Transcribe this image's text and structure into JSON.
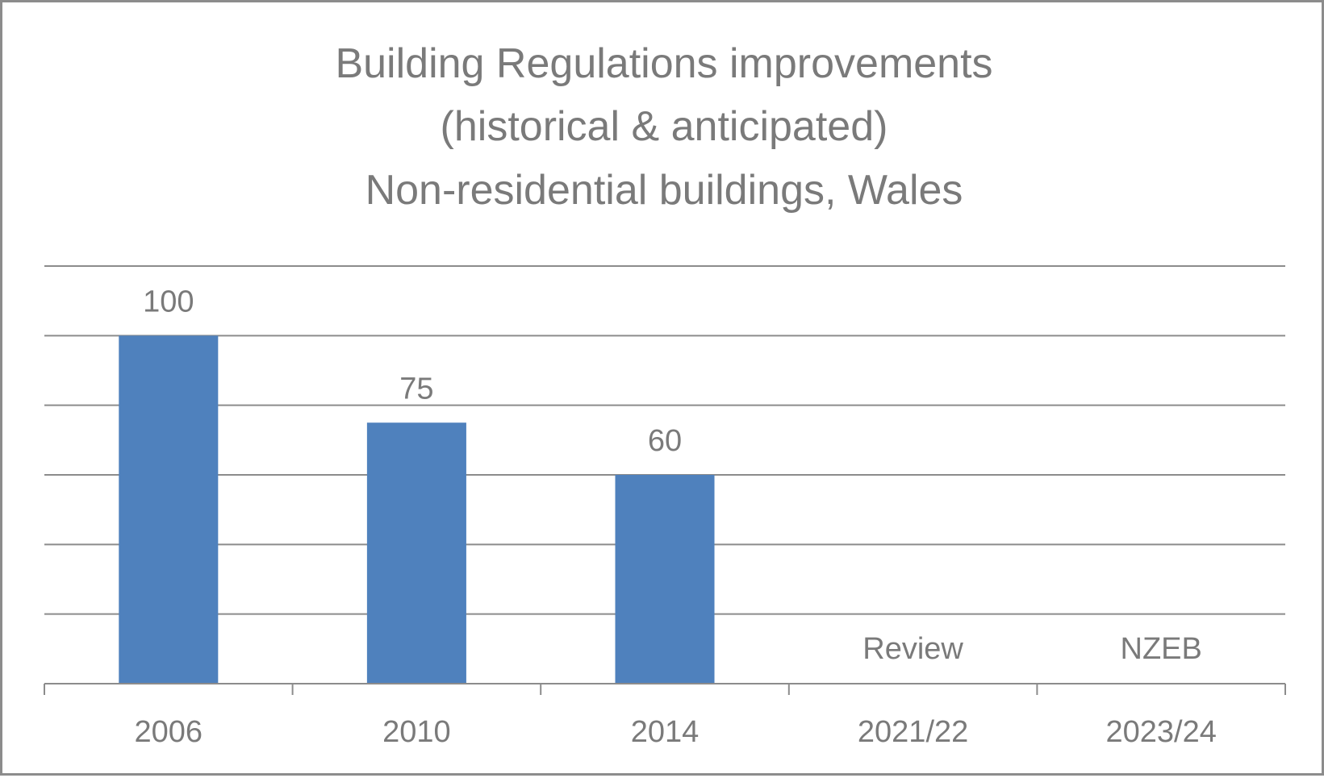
{
  "chart_data": {
    "type": "bar",
    "title": [
      "Building Regulations improvements",
      "(historical & anticipated)",
      "Non-residential buildings, Wales"
    ],
    "categories": [
      "2006",
      "2010",
      "2014",
      "2021/22",
      "2023/24"
    ],
    "values": [
      100,
      75,
      60,
      null,
      null
    ],
    "data_labels": [
      "100",
      "75",
      "60",
      "Review",
      "NZEB"
    ],
    "ylim": [
      0,
      120
    ],
    "gridlines": true,
    "bar_color": "#4f81bd",
    "text_color": "#7a7a7a",
    "grid_color": "#8c8c8c"
  }
}
